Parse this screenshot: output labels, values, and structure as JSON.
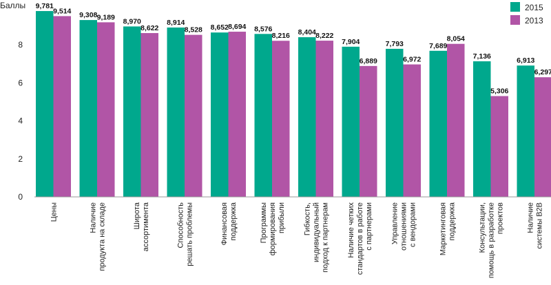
{
  "chart_data": {
    "type": "bar",
    "ylabel": "Баллы",
    "ylim": [
      0,
      10
    ],
    "yticks": [
      "0",
      "2",
      "4",
      "6",
      "8"
    ],
    "legend_position": "top-right",
    "categories": [
      [
        "Цены"
      ],
      [
        "Наличие",
        "продукта на складе"
      ],
      [
        "Широта",
        "ассортимента"
      ],
      [
        "Способность",
        "решать проблемы"
      ],
      [
        "Финансовая",
        "поддержка"
      ],
      [
        "Программы",
        "формирования",
        "прибыли"
      ],
      [
        "Гибкость,",
        "индивидуальный",
        "подход к партнерам"
      ],
      [
        "Наличие четких",
        "стандартов в работе",
        "с партнерами"
      ],
      [
        "Управление",
        "отношениями",
        "с вендорами"
      ],
      [
        "Маркетинговая",
        "поддержка"
      ],
      [
        "Консультации,",
        "помощь в разработке",
        "проектов"
      ],
      [
        "Наличие",
        "системы B2B"
      ]
    ],
    "series": [
      {
        "name": "2015",
        "color": "#00a88d",
        "values": [
          9.781,
          9.308,
          8.97,
          8.914,
          8.652,
          8.576,
          8.404,
          7.904,
          7.793,
          7.689,
          7.136,
          6.913
        ],
        "labels": [
          "9,781",
          "9,308",
          "8,970",
          "8,914",
          "8,652",
          "8,576",
          "8,404",
          "7,904",
          "7,793",
          "7,689",
          "7,136",
          "6,913"
        ]
      },
      {
        "name": "2013",
        "color": "#b155a6",
        "values": [
          9.514,
          9.189,
          8.622,
          8.528,
          8.694,
          8.216,
          8.222,
          6.889,
          6.972,
          8.054,
          5.306,
          6.297
        ],
        "labels": [
          "9,514",
          "9,189",
          "8,622",
          "8,528",
          "8,694",
          "8,216",
          "8,222",
          "6,889",
          "6,972",
          "8,054",
          "5,306",
          "6,297"
        ]
      }
    ]
  }
}
